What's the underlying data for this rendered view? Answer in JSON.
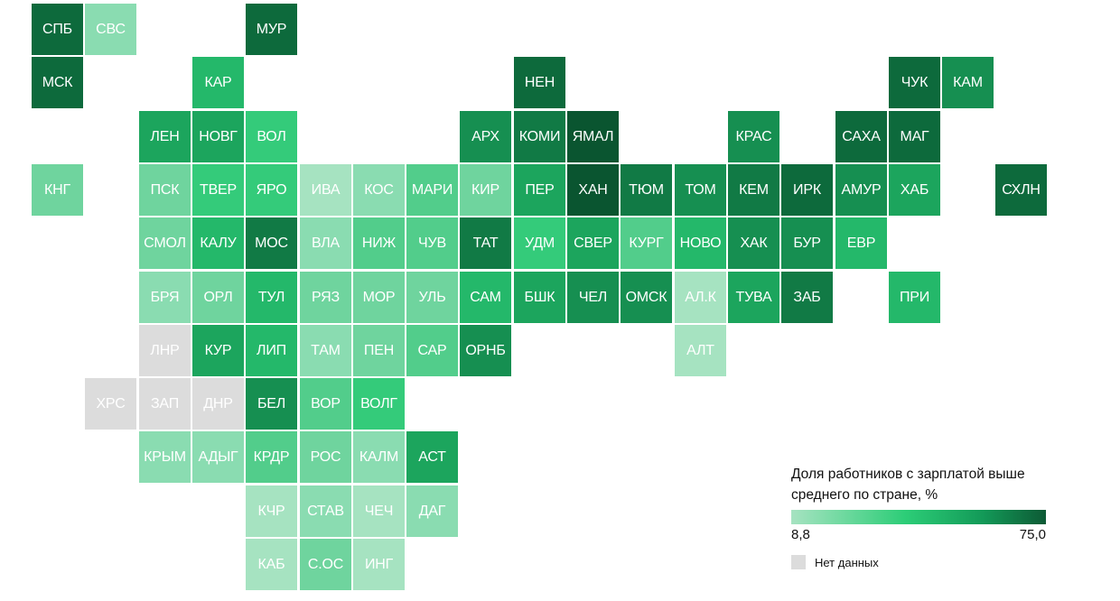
{
  "colors": {
    "c1": "#a6e3c1",
    "c2": "#8adcb1",
    "c3": "#6fd49e",
    "c4": "#52cd8b",
    "c5": "#34cb7a",
    "c6": "#24b86a",
    "c7": "#1ca55d",
    "c8": "#168f51",
    "c9": "#117a45",
    "c10": "#0d6a3c",
    "c11": "#0a5530",
    "nodata": "#dcdcdc"
  },
  "regions": [
    {
      "label": "СПБ",
      "color": "c10"
    },
    {
      "label": "СВС",
      "color": "c2"
    },
    {
      "label": "МУР",
      "color": "c10"
    },
    {
      "label": "МСК",
      "color": "c10"
    },
    {
      "label": "КАР",
      "color": "c6"
    },
    {
      "label": "НЕН",
      "color": "c10"
    },
    {
      "label": "ЧУК",
      "color": "c10"
    },
    {
      "label": "КАМ",
      "color": "c8"
    },
    {
      "label": "ЛЕН",
      "color": "c7"
    },
    {
      "label": "НОВГ",
      "color": "c7"
    },
    {
      "label": "ВОЛ",
      "color": "c5"
    },
    {
      "label": "АРХ",
      "color": "c8"
    },
    {
      "label": "КОМИ",
      "color": "c9"
    },
    {
      "label": "ЯМАЛ",
      "color": "c11"
    },
    {
      "label": "КРАС",
      "color": "c8"
    },
    {
      "label": "САХА",
      "color": "c10"
    },
    {
      "label": "МАГ",
      "color": "c10"
    },
    {
      "label": "КНГ",
      "color": "c3"
    },
    {
      "label": "ПСК",
      "color": "c3"
    },
    {
      "label": "ТВЕР",
      "color": "c5"
    },
    {
      "label": "ЯРО",
      "color": "c5"
    },
    {
      "label": "ИВА",
      "color": "c1"
    },
    {
      "label": "КОС",
      "color": "c2"
    },
    {
      "label": "МАРИ",
      "color": "c4"
    },
    {
      "label": "КИР",
      "color": "c3"
    },
    {
      "label": "ПЕР",
      "color": "c7"
    },
    {
      "label": "ХАН",
      "color": "c11"
    },
    {
      "label": "ТЮМ",
      "color": "c9"
    },
    {
      "label": "ТОМ",
      "color": "c8"
    },
    {
      "label": "КЕМ",
      "color": "c9"
    },
    {
      "label": "ИРК",
      "color": "c10"
    },
    {
      "label": "АМУР",
      "color": "c8"
    },
    {
      "label": "ХАБ",
      "color": "c7"
    },
    {
      "label": "СХЛН",
      "color": "c10"
    },
    {
      "label": "СМОЛ",
      "color": "c3"
    },
    {
      "label": "КАЛУ",
      "color": "c6"
    },
    {
      "label": "МОС",
      "color": "c9"
    },
    {
      "label": "ВЛА",
      "color": "c2"
    },
    {
      "label": "НИЖ",
      "color": "c4"
    },
    {
      "label": "ЧУВ",
      "color": "c4"
    },
    {
      "label": "ТАТ",
      "color": "c9"
    },
    {
      "label": "УДМ",
      "color": "c5"
    },
    {
      "label": "СВЕР",
      "color": "c7"
    },
    {
      "label": "КУРГ",
      "color": "c4"
    },
    {
      "label": "НОВО",
      "color": "c6"
    },
    {
      "label": "ХАК",
      "color": "c8"
    },
    {
      "label": "БУР",
      "color": "c8"
    },
    {
      "label": "ЕВР",
      "color": "c6"
    },
    {
      "label": "БРЯ",
      "color": "c2"
    },
    {
      "label": "ОРЛ",
      "color": "c3"
    },
    {
      "label": "ТУЛ",
      "color": "c6"
    },
    {
      "label": "РЯЗ",
      "color": "c3"
    },
    {
      "label": "МОР",
      "color": "c3"
    },
    {
      "label": "УЛЬ",
      "color": "c3"
    },
    {
      "label": "САМ",
      "color": "c6"
    },
    {
      "label": "БШК",
      "color": "c7"
    },
    {
      "label": "ЧЕЛ",
      "color": "c8"
    },
    {
      "label": "ОМСК",
      "color": "c8"
    },
    {
      "label": "АЛ.К",
      "color": "c1"
    },
    {
      "label": "ТУВА",
      "color": "c7"
    },
    {
      "label": "ЗАБ",
      "color": "c9"
    },
    {
      "label": "ПРИ",
      "color": "c6"
    },
    {
      "label": "ЛНР",
      "color": "nodata"
    },
    {
      "label": "КУР",
      "color": "c7"
    },
    {
      "label": "ЛИП",
      "color": "c6"
    },
    {
      "label": "ТАМ",
      "color": "c2"
    },
    {
      "label": "ПЕН",
      "color": "c3"
    },
    {
      "label": "САР",
      "color": "c4"
    },
    {
      "label": "ОРНБ",
      "color": "c8"
    },
    {
      "label": "АЛТ",
      "color": "c1"
    },
    {
      "label": "ХРС",
      "color": "nodata"
    },
    {
      "label": "ЗАП",
      "color": "nodata"
    },
    {
      "label": "ДНР",
      "color": "nodata"
    },
    {
      "label": "БЕЛ",
      "color": "c8"
    },
    {
      "label": "ВОР",
      "color": "c4"
    },
    {
      "label": "ВОЛГ",
      "color": "c5"
    },
    {
      "label": "КРЫМ",
      "color": "c2"
    },
    {
      "label": "АДЫГ",
      "color": "c2"
    },
    {
      "label": "КРДР",
      "color": "c4"
    },
    {
      "label": "РОС",
      "color": "c3"
    },
    {
      "label": "КАЛМ",
      "color": "c2"
    },
    {
      "label": "АСТ",
      "color": "c7"
    },
    {
      "label": "КЧР",
      "color": "c1"
    },
    {
      "label": "СТАВ",
      "color": "c2"
    },
    {
      "label": "ЧЕЧ",
      "color": "c1"
    },
    {
      "label": "ДАГ",
      "color": "c2"
    },
    {
      "label": "КАБ",
      "color": "c1"
    },
    {
      "label": "С.ОС",
      "color": "c3"
    },
    {
      "label": "ИНГ",
      "color": "c1"
    }
  ],
  "legend": {
    "title": "Доля работников с зарплатой выше среднего по стране, %",
    "min_label": "8,8",
    "max_label": "75,0",
    "nodata_label": "Нет данных"
  }
}
